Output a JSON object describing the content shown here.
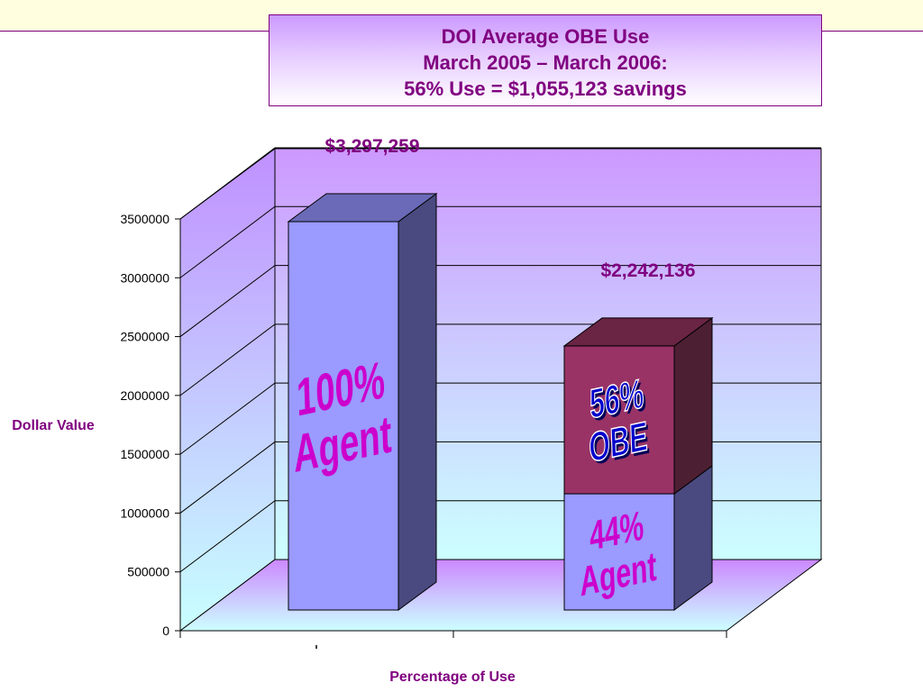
{
  "title": {
    "line1": "DOI Average OBE Use",
    "line2": "March 2005 – March 2006:",
    "line3": "56% Use = $1,055,123 savings"
  },
  "colors": {
    "title_text": "#800080",
    "banner_bg": "#ffffe0",
    "agent_front": "#9a9aff",
    "agent_side": "#4a4a80",
    "agent_top": "#6a6ab8",
    "obe_front": "#993366",
    "obe_side": "#4d1f33",
    "obe_top": "#6a2444",
    "wall_top": "#cc99ff",
    "wall_bottom": "#ccffff",
    "bar_text_magenta": "#cc00cc",
    "bar_text_blue": "#0000cc"
  },
  "chart_data": {
    "type": "bar",
    "stacked": true,
    "three_d": true,
    "xlabel": "Percentage of Use",
    "ylabel": "Dollar Value",
    "ylim": [
      0,
      3500000
    ],
    "yticks": [
      0,
      500000,
      1000000,
      1500000,
      2000000,
      2500000,
      3000000,
      3500000
    ],
    "ytick_labels": [
      "0",
      "500000",
      "1000000",
      "1500000",
      "2000000",
      "2500000",
      "3000000",
      "3500000"
    ],
    "grid": true,
    "bars": [
      {
        "total": 3297259,
        "total_label": "$3,297,259",
        "segments": [
          {
            "name": "Agent",
            "value": 3297259,
            "label_lines": [
              "100%",
              "Agent"
            ],
            "kind": "agent"
          }
        ]
      },
      {
        "total": 2242136,
        "total_label": "$2,242,136",
        "segments": [
          {
            "name": "Agent",
            "value": 986540,
            "label_lines": [
              "44%",
              "Agent"
            ],
            "kind": "agent"
          },
          {
            "name": "OBE",
            "value": 1255596,
            "label_lines": [
              "56%",
              "OBE"
            ],
            "kind": "obe"
          }
        ]
      }
    ]
  }
}
